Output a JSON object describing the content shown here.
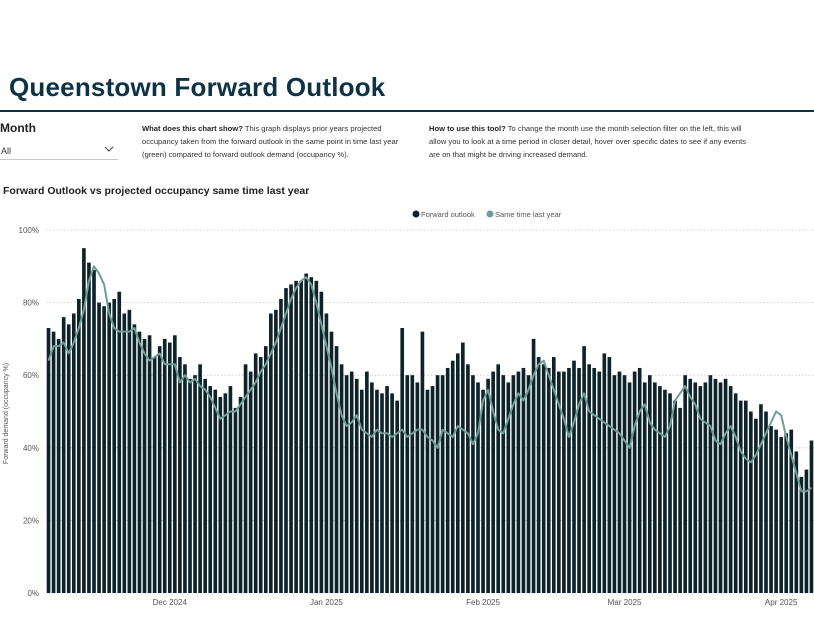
{
  "header": {
    "title": "Queenstown Forward Outlook"
  },
  "filter": {
    "label": "Month",
    "value": "All",
    "chevron_icon": "chevron-down-icon"
  },
  "info": {
    "chart_heading": "What does this chart show?",
    "chart_text": "This graph displays prior years projected occupancy taken from the forward outlook in the same point in time last year (green) compared to forward outlook demand (occupancy %).",
    "tool_heading": "How to use this tool?",
    "tool_text": "To change the month use the month selection filter on the left, this will allow you to look at a time period in closer detail, hover over specific dates to see if any events are on that might be driving increased demand."
  },
  "colors": {
    "bar": "#0d2229",
    "line": "#6f9d97",
    "title": "#0e3346"
  },
  "chart_data": {
    "type": "bar",
    "title": "Forward Outlook vs projected occupancy same time last year",
    "ylabel": "Forward demand (occupancy %)",
    "xlabel": "",
    "ylim": [
      0,
      100
    ],
    "y_ticks": [
      "0%",
      "20%",
      "40%",
      "60%",
      "80%",
      "100%"
    ],
    "x_ticks": [
      {
        "label": "Dec 2024",
        "index": 24
      },
      {
        "label": "Jan 2025",
        "index": 55
      },
      {
        "label": "Feb 2025",
        "index": 86
      },
      {
        "label": "Mar 2025",
        "index": 114
      },
      {
        "label": "Apr 2025",
        "index": 145
      }
    ],
    "legend": [
      "Forward outlook",
      "Same time last year"
    ],
    "series": [
      {
        "name": "Forward outlook",
        "type": "bar",
        "values": [
          73,
          72,
          70,
          76,
          74,
          77,
          81,
          95,
          91,
          89,
          80,
          79,
          80,
          81,
          83,
          77,
          78,
          74,
          72,
          70,
          71,
          65,
          68,
          70,
          69,
          71,
          65,
          63,
          59,
          60,
          63,
          59,
          57,
          56,
          54,
          55,
          57,
          51,
          54,
          63,
          61,
          66,
          65,
          68,
          77,
          78,
          81,
          84,
          85,
          86,
          86,
          88,
          87,
          86,
          83,
          77,
          72,
          68,
          63,
          60,
          61,
          59,
          56,
          61,
          58,
          56,
          55,
          57,
          55,
          53,
          73,
          60,
          60,
          58,
          72,
          56,
          57,
          60,
          60,
          62,
          64,
          66,
          69,
          63,
          60,
          58,
          56,
          59,
          61,
          63,
          60,
          58,
          60,
          61,
          62,
          60,
          70,
          65,
          63,
          62,
          65,
          61,
          61,
          62,
          64,
          62,
          68,
          63,
          62,
          61,
          66,
          65,
          60,
          61,
          60,
          58,
          61,
          62,
          58,
          60,
          58,
          57,
          56,
          55,
          53,
          51,
          60,
          59,
          58,
          57,
          58,
          60,
          59,
          58,
          59,
          57,
          55,
          53,
          53,
          50,
          48,
          52,
          50,
          46,
          45,
          43,
          44,
          45,
          39,
          32,
          34,
          42
        ],
        "note": "Values estimated from bar heights"
      },
      {
        "name": "Same time last year",
        "type": "line",
        "values": [
          64,
          68,
          68,
          69,
          66,
          69,
          73,
          78,
          86,
          90,
          88,
          85,
          77,
          73,
          72,
          72,
          72,
          73,
          69,
          66,
          64,
          65,
          66,
          63,
          63,
          63,
          58,
          60,
          58,
          59,
          57,
          56,
          54,
          51,
          48,
          49,
          50,
          50,
          52,
          54,
          56,
          58,
          61,
          63,
          66,
          69,
          73,
          77,
          81,
          84,
          86,
          87,
          85,
          80,
          74,
          68,
          62,
          55,
          49,
          46,
          47,
          49,
          45,
          44,
          43,
          45,
          44,
          44,
          43,
          44,
          45,
          43,
          44,
          45,
          45,
          43,
          42,
          40,
          45,
          44,
          43,
          46,
          45,
          44,
          41,
          44,
          53,
          56,
          50,
          45,
          44,
          48,
          52,
          55,
          53,
          56,
          60,
          63,
          64,
          60,
          56,
          52,
          48,
          43,
          47,
          52,
          55,
          50,
          49,
          48,
          47,
          46,
          45,
          44,
          42,
          40,
          46,
          50,
          52,
          47,
          45,
          44,
          43,
          46,
          53,
          55,
          57,
          54,
          52,
          48,
          47,
          46,
          42,
          41,
          44,
          46,
          43,
          39,
          37,
          36,
          38,
          41,
          44,
          47,
          50,
          49,
          43,
          38,
          33,
          28,
          28,
          29
        ]
      }
    ]
  }
}
